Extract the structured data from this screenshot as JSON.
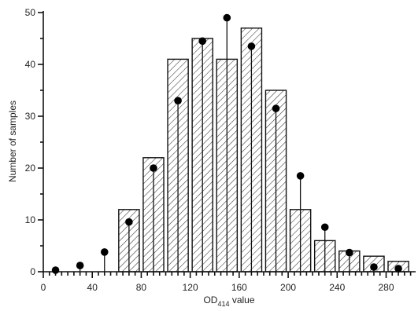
{
  "chart_data": {
    "type": "bar",
    "title": "",
    "xlabel": {
      "base": "OD",
      "subscript": "414",
      "suffix": " value"
    },
    "ylabel": "Number of samples",
    "xlim": [
      0,
      300
    ],
    "ylim": [
      0,
      50
    ],
    "x_ticks": [
      0,
      40,
      80,
      120,
      160,
      200,
      240,
      280
    ],
    "y_ticks": [
      0,
      10,
      20,
      30,
      40,
      50
    ],
    "bin_width": 20,
    "series": [
      {
        "kind": "histogram",
        "style": "hatched bars",
        "bin_centers": [
          10,
          30,
          50,
          70,
          90,
          110,
          130,
          150,
          170,
          190,
          210,
          230,
          250,
          270,
          290
        ],
        "values": [
          0,
          0,
          0,
          12,
          22,
          41,
          45,
          41,
          47,
          35,
          12,
          6,
          4,
          3,
          2
        ]
      },
      {
        "kind": "expected",
        "style": "dot on stem",
        "x": [
          10,
          30,
          50,
          70,
          90,
          110,
          130,
          150,
          170,
          190,
          210,
          230,
          250,
          270,
          290
        ],
        "values": [
          0.3,
          1.2,
          3.8,
          9.6,
          20,
          33,
          44.5,
          49,
          43.5,
          31.5,
          18.5,
          8.6,
          3.7,
          0.9,
          0.6
        ]
      }
    ],
    "grid": false,
    "legend": "none"
  }
}
